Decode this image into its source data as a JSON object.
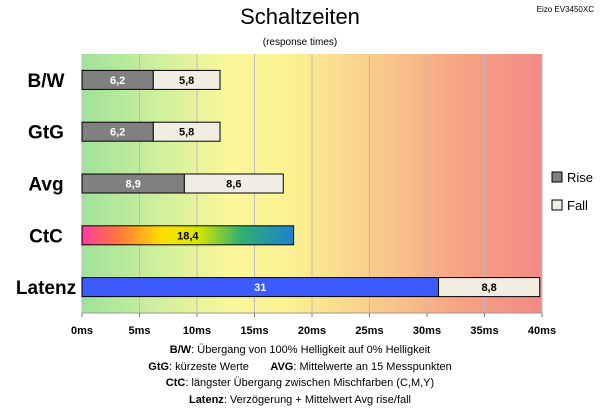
{
  "chart_data": {
    "type": "bar",
    "orientation": "horizontal",
    "stacked": true,
    "title": "Schaltzeiten",
    "subtitle": "(response times)",
    "model": "Eizo EV3450XC",
    "categories": [
      "B/W",
      "GtG",
      "Avg",
      "CtC",
      "Latenz"
    ],
    "series": [
      {
        "name": "Rise",
        "values": [
          6.2,
          6.2,
          8.9,
          18.4,
          31
        ],
        "color": "#808080"
      },
      {
        "name": "Fall",
        "values": [
          5.8,
          5.8,
          8.6,
          null,
          8.8
        ],
        "color": "#f0ede3"
      }
    ],
    "special_colors": {
      "CtC": "gradient",
      "Latenz_rise": "#3b5bff"
    },
    "xlim": [
      0,
      40
    ],
    "xticks": [
      "0ms",
      "5ms",
      "10ms",
      "15ms",
      "20ms",
      "25ms",
      "30ms",
      "35ms",
      "40ms"
    ],
    "grid": true,
    "legend_position": "right",
    "background": "gradient green-yellow-orange-red"
  },
  "footer": [
    {
      "key": "B/W",
      "text": ":  Übergang von 100% Helligkeit auf 0% Helligkeit"
    },
    {
      "key": "GtG",
      "text": ": kürzeste  Werte",
      "key2": "AVG",
      "text2": ": Mittelwerte  an 15 Messpunkten"
    },
    {
      "key": "CtC",
      "text": ": längster Übergang  zwischen Mischfarben (C,M,Y)"
    },
    {
      "key": "Latenz",
      "text": ": Verzögerung  + Mittelwert Avg rise/fall"
    }
  ]
}
